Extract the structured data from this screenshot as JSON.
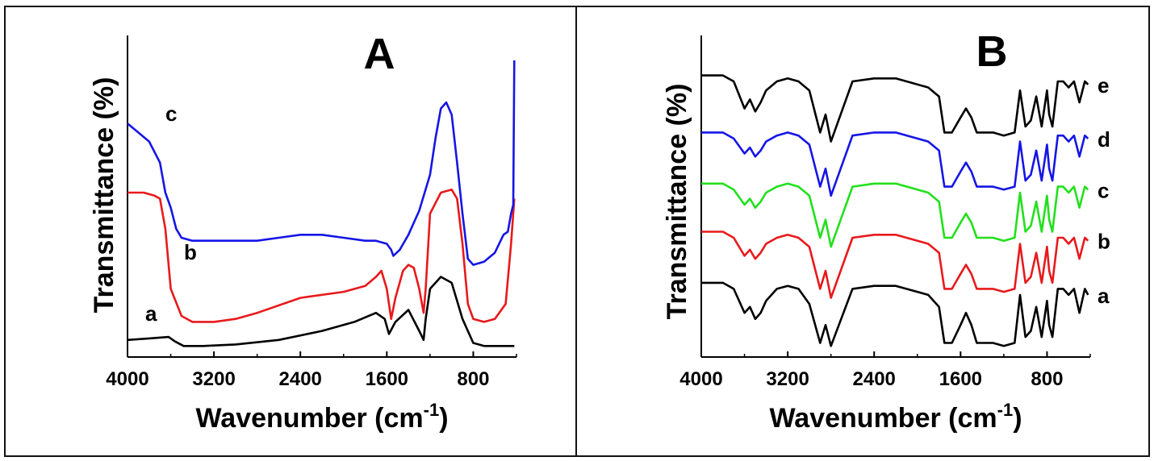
{
  "colors": {
    "black": "#000000",
    "red": "#e8191b",
    "blue": "#1515e6",
    "green": "#22e01c",
    "frame": "#111111"
  },
  "panels": [
    {
      "panel_label": "A",
      "ylabel": "Transmittance (%)",
      "xlabel_main": "Wavenumber (cm",
      "xlabel_sup": "-1",
      "xlabel_close": ")",
      "ticks": [
        "4000",
        "3200",
        "2400",
        "1600",
        "800"
      ]
    },
    {
      "panel_label": "B",
      "ylabel": "Transmittance (%)",
      "xlabel_main": "Wavenumber (cm",
      "xlabel_sup": "-1",
      "xlabel_close": ")",
      "ticks": [
        "4000",
        "3200",
        "2400",
        "1600",
        "800"
      ]
    }
  ],
  "chart_data": [
    {
      "type": "line",
      "panel": "A",
      "xlabel": "Wavenumber (cm-1)",
      "ylabel": "Transmittance (%)",
      "xlim": [
        4000,
        400
      ],
      "ylim": [
        0,
        100
      ],
      "grid": false,
      "x_ticks": [
        4000,
        3200,
        2400,
        1600,
        800
      ],
      "series": [
        {
          "name": "a",
          "color": "#000000",
          "x": [
            4000,
            3800,
            3620,
            3560,
            3480,
            3300,
            3000,
            2600,
            2200,
            1900,
            1700,
            1620,
            1580,
            1520,
            1400,
            1300,
            1260,
            1240,
            1200,
            1100,
            1000,
            900,
            800,
            700,
            600,
            500,
            420
          ],
          "y": [
            3,
            3.5,
            4,
            2.5,
            1,
            1,
            1.5,
            3,
            6,
            9,
            12,
            10,
            5,
            9,
            13,
            6,
            3,
            10,
            20,
            24,
            22,
            10,
            2,
            1,
            1,
            1,
            1
          ]
        },
        {
          "name": "b",
          "color": "#e8191b",
          "x": [
            4000,
            3850,
            3750,
            3700,
            3650,
            3600,
            3500,
            3400,
            3200,
            3000,
            2800,
            2400,
            2000,
            1800,
            1700,
            1650,
            1600,
            1560,
            1520,
            1450,
            1400,
            1350,
            1300,
            1260,
            1240,
            1200,
            1100,
            1000,
            950,
            900,
            850,
            800,
            700,
            600,
            500,
            450,
            420
          ],
          "y": [
            52,
            52,
            51,
            50,
            40,
            20,
            11,
            9,
            9,
            10,
            12,
            17,
            19,
            21,
            24,
            26,
            20,
            10,
            17,
            26,
            28,
            27,
            20,
            12,
            20,
            45,
            52,
            53,
            50,
            35,
            15,
            10,
            9,
            10,
            15,
            35,
            50
          ]
        },
        {
          "name": "c",
          "color": "#1515e6",
          "x": [
            4000,
            3900,
            3800,
            3700,
            3650,
            3600,
            3550,
            3500,
            3400,
            3200,
            3000,
            2800,
            2600,
            2400,
            2200,
            2000,
            1800,
            1700,
            1600,
            1560,
            1540,
            1480,
            1400,
            1300,
            1200,
            1150,
            1100,
            1050,
            1000,
            950,
            900,
            850,
            800,
            700,
            600,
            520,
            480,
            450,
            430,
            420
          ],
          "y": [
            75,
            72,
            69,
            62,
            52,
            47,
            40,
            37,
            36,
            36,
            36,
            36,
            37,
            38,
            38,
            37,
            36,
            36,
            35,
            33,
            31,
            33,
            38,
            46,
            58,
            70,
            80,
            82,
            78,
            62,
            45,
            30,
            28,
            29,
            32,
            38,
            39,
            45,
            48,
            96
          ]
        }
      ]
    },
    {
      "type": "line",
      "panel": "B",
      "xlabel": "Wavenumber (cm-1)",
      "ylabel": "Transmittance (%)",
      "xlim": [
        4000,
        400
      ],
      "ylim": [
        0,
        100
      ],
      "grid": false,
      "x_ticks": [
        4000,
        3200,
        2400,
        1600,
        800
      ],
      "series": [
        {
          "name": "a",
          "color": "#000000",
          "x": [
            4000,
            3800,
            3700,
            3600,
            3550,
            3500,
            3450,
            3400,
            3300,
            3200,
            3100,
            3000,
            2900,
            2850,
            2800,
            2600,
            2400,
            2200,
            2000,
            1900,
            1800,
            1750,
            1700,
            1680,
            1600,
            1550,
            1500,
            1450,
            1400,
            1300,
            1200,
            1100,
            1050,
            1000,
            950,
            900,
            850,
            800,
            780,
            750,
            700,
            650,
            600,
            550,
            500,
            450,
            420
          ],
          "y": [
            22,
            22,
            20,
            12,
            14,
            10,
            12,
            16,
            20,
            21,
            20,
            15,
            2,
            8,
            1,
            20,
            21,
            21,
            19,
            18,
            14,
            2,
            2,
            2,
            8,
            12,
            8,
            2,
            2,
            2,
            1,
            2,
            18,
            4,
            6,
            14,
            4,
            16,
            8,
            4,
            20,
            20,
            18,
            20,
            12,
            20,
            18
          ]
        },
        {
          "name": "b",
          "color": "#e8191b",
          "x": [
            4000,
            3800,
            3700,
            3600,
            3550,
            3500,
            3450,
            3400,
            3300,
            3200,
            3100,
            3000,
            2900,
            2850,
            2800,
            2600,
            2400,
            2200,
            2000,
            1900,
            1800,
            1750,
            1700,
            1680,
            1600,
            1550,
            1500,
            1450,
            1400,
            1300,
            1200,
            1100,
            1050,
            1000,
            950,
            900,
            850,
            800,
            780,
            750,
            700,
            650,
            600,
            550,
            500,
            450,
            420
          ],
          "y": [
            39,
            39,
            37,
            31,
            33,
            30,
            32,
            35,
            37,
            38,
            37,
            34,
            20,
            26,
            17,
            37,
            38,
            38,
            36,
            35,
            32,
            20,
            20,
            20,
            25,
            28,
            25,
            20,
            20,
            20,
            19,
            20,
            35,
            22,
            24,
            32,
            22,
            34,
            26,
            22,
            37,
            37,
            35,
            37,
            30,
            37,
            36
          ]
        },
        {
          "name": "c",
          "color": "#22e01c",
          "x": [
            4000,
            3800,
            3700,
            3600,
            3550,
            3500,
            3450,
            3400,
            3300,
            3200,
            3100,
            3000,
            2900,
            2850,
            2800,
            2600,
            2400,
            2200,
            2000,
            1900,
            1800,
            1750,
            1700,
            1680,
            1600,
            1550,
            1500,
            1450,
            1400,
            1300,
            1200,
            1100,
            1050,
            1000,
            950,
            900,
            850,
            800,
            780,
            750,
            700,
            650,
            600,
            550,
            500,
            450,
            420
          ],
          "y": [
            55,
            55,
            53,
            48,
            50,
            47,
            49,
            52,
            54,
            55,
            54,
            51,
            37,
            43,
            34,
            54,
            55,
            55,
            53,
            52,
            49,
            37,
            37,
            37,
            42,
            45,
            42,
            37,
            37,
            37,
            36,
            37,
            52,
            39,
            41,
            49,
            39,
            51,
            43,
            39,
            54,
            54,
            52,
            54,
            47,
            54,
            53
          ]
        },
        {
          "name": "d",
          "color": "#1515e6",
          "x": [
            4000,
            3800,
            3700,
            3600,
            3550,
            3500,
            3450,
            3400,
            3300,
            3200,
            3100,
            3000,
            2900,
            2850,
            2800,
            2600,
            2400,
            2200,
            2000,
            1900,
            1800,
            1750,
            1700,
            1680,
            1600,
            1550,
            1500,
            1450,
            1400,
            1300,
            1200,
            1100,
            1050,
            1000,
            950,
            900,
            850,
            800,
            780,
            750,
            700,
            650,
            600,
            550,
            500,
            450,
            420
          ],
          "y": [
            72,
            72,
            70,
            65,
            67,
            64,
            66,
            69,
            71,
            72,
            71,
            68,
            54,
            60,
            51,
            71,
            72,
            72,
            70,
            69,
            66,
            54,
            54,
            54,
            59,
            62,
            59,
            54,
            54,
            54,
            53,
            54,
            69,
            56,
            58,
            66,
            56,
            68,
            60,
            56,
            71,
            71,
            69,
            71,
            64,
            71,
            70
          ]
        },
        {
          "name": "e",
          "color": "#000000",
          "x": [
            4000,
            3800,
            3700,
            3600,
            3550,
            3500,
            3450,
            3400,
            3300,
            3200,
            3100,
            3000,
            2900,
            2850,
            2800,
            2600,
            2400,
            2200,
            2000,
            1900,
            1800,
            1750,
            1700,
            1680,
            1600,
            1550,
            1500,
            1450,
            1400,
            1300,
            1200,
            1100,
            1050,
            1000,
            950,
            900,
            850,
            800,
            780,
            750,
            700,
            650,
            600,
            550,
            500,
            450,
            420
          ],
          "y": [
            91,
            91,
            89,
            80,
            83,
            79,
            82,
            86,
            89,
            90,
            89,
            86,
            72,
            78,
            69,
            89,
            90,
            90,
            88,
            87,
            84,
            72,
            72,
            72,
            77,
            80,
            77,
            72,
            72,
            72,
            71,
            72,
            86,
            74,
            76,
            84,
            74,
            86,
            78,
            74,
            89,
            89,
            87,
            89,
            82,
            89,
            88
          ]
        }
      ]
    }
  ]
}
